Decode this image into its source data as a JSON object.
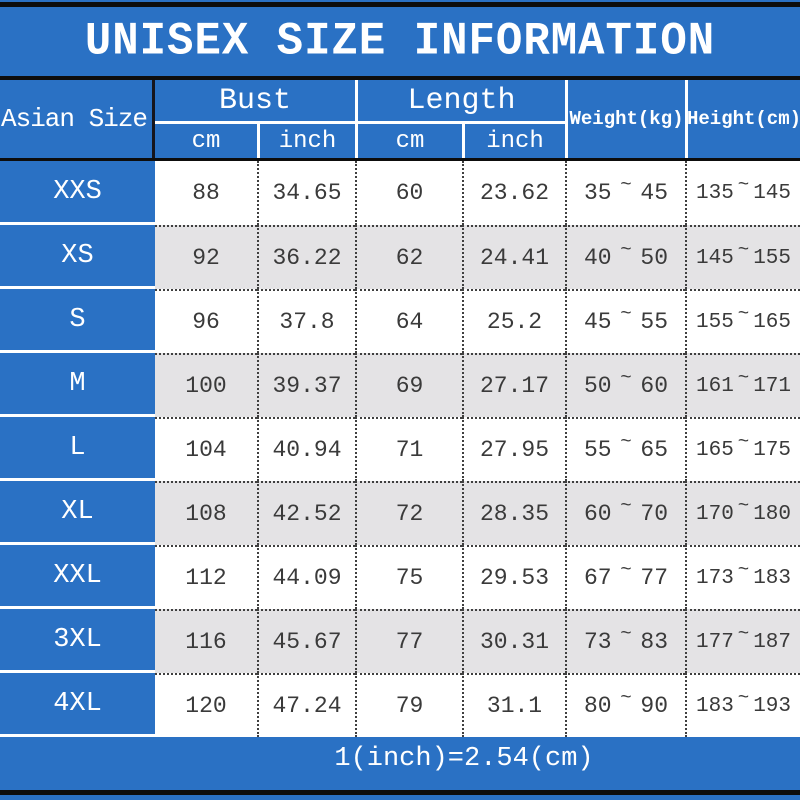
{
  "title": "UNISEX SIZE INFORMATION",
  "header": {
    "corner": "Asian Size",
    "bust": {
      "label": "Bust",
      "cm": "cm",
      "inch": "inch"
    },
    "length": {
      "label": "Length",
      "cm": "cm",
      "inch": "inch"
    },
    "weight": "Weight(kg)",
    "height": "Height(cm)"
  },
  "ui": {
    "tilde": "~"
  },
  "rows": [
    {
      "size": "XXS",
      "bust_cm": "88",
      "bust_inch": "34.65",
      "length_cm": "60",
      "length_inch": "23.62",
      "weight_min": "35",
      "weight_max": "45",
      "height_min": "135",
      "height_max": "145"
    },
    {
      "size": "XS",
      "bust_cm": "92",
      "bust_inch": "36.22",
      "length_cm": "62",
      "length_inch": "24.41",
      "weight_min": "40",
      "weight_max": "50",
      "height_min": "145",
      "height_max": "155"
    },
    {
      "size": "S",
      "bust_cm": "96",
      "bust_inch": "37.8",
      "length_cm": "64",
      "length_inch": "25.2",
      "weight_min": "45",
      "weight_max": "55",
      "height_min": "155",
      "height_max": "165"
    },
    {
      "size": "M",
      "bust_cm": "100",
      "bust_inch": "39.37",
      "length_cm": "69",
      "length_inch": "27.17",
      "weight_min": "50",
      "weight_max": "60",
      "height_min": "161",
      "height_max": "171"
    },
    {
      "size": "L",
      "bust_cm": "104",
      "bust_inch": "40.94",
      "length_cm": "71",
      "length_inch": "27.95",
      "weight_min": "55",
      "weight_max": "65",
      "height_min": "165",
      "height_max": "175"
    },
    {
      "size": "XL",
      "bust_cm": "108",
      "bust_inch": "42.52",
      "length_cm": "72",
      "length_inch": "28.35",
      "weight_min": "60",
      "weight_max": "70",
      "height_min": "170",
      "height_max": "180"
    },
    {
      "size": "XXL",
      "bust_cm": "112",
      "bust_inch": "44.09",
      "length_cm": "75",
      "length_inch": "29.53",
      "weight_min": "67",
      "weight_max": "77",
      "height_min": "173",
      "height_max": "183"
    },
    {
      "size": "3XL",
      "bust_cm": "116",
      "bust_inch": "45.67",
      "length_cm": "77",
      "length_inch": "30.31",
      "weight_min": "73",
      "weight_max": "83",
      "height_min": "177",
      "height_max": "187"
    },
    {
      "size": "4XL",
      "bust_cm": "120",
      "bust_inch": "47.24",
      "length_cm": "79",
      "length_inch": "31.1",
      "weight_min": "80",
      "weight_max": "90",
      "height_min": "183",
      "height_max": "193"
    }
  ],
  "footer": "1(inch)=2.54(cm)",
  "colors": {
    "blue": "#2a71c4",
    "row_alt": "#e4e3e5",
    "row_white": "#ffffff",
    "black_line": "#0d0d0d",
    "data_text": "#3a3a3a",
    "header_text": "#ffffff"
  },
  "chart_data": {
    "type": "table",
    "title": "UNISEX SIZE INFORMATION",
    "columns": [
      "Asian Size",
      "Bust cm",
      "Bust inch",
      "Length cm",
      "Length inch",
      "Weight(kg)",
      "Height(cm)"
    ],
    "rows": [
      [
        "XXS",
        "88",
        "34.65",
        "60",
        "23.62",
        "35~45",
        "135~145"
      ],
      [
        "XS",
        "92",
        "36.22",
        "62",
        "24.41",
        "40~50",
        "145~155"
      ],
      [
        "S",
        "96",
        "37.8",
        "64",
        "25.2",
        "45~55",
        "155~165"
      ],
      [
        "M",
        "100",
        "39.37",
        "69",
        "27.17",
        "50~60",
        "161~171"
      ],
      [
        "L",
        "104",
        "40.94",
        "71",
        "27.95",
        "55~65",
        "165~175"
      ],
      [
        "XL",
        "108",
        "42.52",
        "72",
        "28.35",
        "60~70",
        "170~180"
      ],
      [
        "XXL",
        "112",
        "44.09",
        "75",
        "29.53",
        "67~77",
        "173~183"
      ],
      [
        "3XL",
        "116",
        "45.67",
        "77",
        "30.31",
        "73~83",
        "177~187"
      ],
      [
        "4XL",
        "120",
        "47.24",
        "79",
        "31.1",
        "80~90",
        "183~193"
      ]
    ],
    "note": "1(inch)=2.54(cm)",
    "layout": {
      "header_bg": "#2a71c4",
      "alt_row_bg": "#e4e3e5",
      "grid": "dotted"
    }
  }
}
